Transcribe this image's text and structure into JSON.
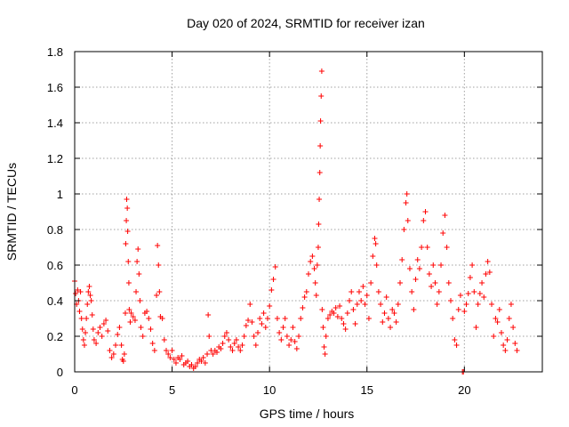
{
  "chart_data": {
    "type": "scatter",
    "title": "Day 020 of 2024, SRMTID for receiver izan",
    "xlabel": "GPS time / hours",
    "ylabel": "SRMTID / TECUs",
    "xlim": [
      0,
      24
    ],
    "ylim": [
      0,
      1.8
    ],
    "xticks": [
      0,
      5,
      10,
      15,
      20
    ],
    "xtick_labels": [
      "0",
      "5",
      "10",
      "15",
      "20"
    ],
    "yticks": [
      0,
      0.2,
      0.4,
      0.6,
      0.8,
      1.0,
      1.2,
      1.4,
      1.6,
      1.8
    ],
    "ytick_labels": [
      "0",
      "0.2",
      "0.4",
      "0.6",
      "0.8",
      "1",
      "1.2",
      "1.4",
      "1.6",
      "1.8"
    ],
    "grid": true,
    "marker": "+",
    "color": "#ff0000",
    "series": [
      {
        "name": "SRMTID",
        "points": [
          [
            0.0,
            0.51
          ],
          [
            0.05,
            0.44
          ],
          [
            0.1,
            0.38
          ],
          [
            0.15,
            0.46
          ],
          [
            0.2,
            0.4
          ],
          [
            0.25,
            0.34
          ],
          [
            0.3,
            0.45
          ],
          [
            0.35,
            0.3
          ],
          [
            0.4,
            0.24
          ],
          [
            0.45,
            0.18
          ],
          [
            0.5,
            0.15
          ],
          [
            0.55,
            0.22
          ],
          [
            0.6,
            0.3
          ],
          [
            0.65,
            0.38
          ],
          [
            0.7,
            0.45
          ],
          [
            0.75,
            0.48
          ],
          [
            0.8,
            0.43
          ],
          [
            0.85,
            0.4
          ],
          [
            0.9,
            0.32
          ],
          [
            0.95,
            0.24
          ],
          [
            1.0,
            0.18
          ],
          [
            1.1,
            0.16
          ],
          [
            1.2,
            0.22
          ],
          [
            1.3,
            0.25
          ],
          [
            1.4,
            0.2
          ],
          [
            1.5,
            0.27
          ],
          [
            1.6,
            0.29
          ],
          [
            1.7,
            0.23
          ],
          [
            1.8,
            0.12
          ],
          [
            1.9,
            0.08
          ],
          [
            2.0,
            0.1
          ],
          [
            2.1,
            0.15
          ],
          [
            2.2,
            0.21
          ],
          [
            2.3,
            0.25
          ],
          [
            2.4,
            0.15
          ],
          [
            2.45,
            0.07
          ],
          [
            2.5,
            0.06
          ],
          [
            2.55,
            0.1
          ],
          [
            2.6,
            0.33
          ],
          [
            2.62,
            0.72
          ],
          [
            2.65,
            0.85
          ],
          [
            2.67,
            0.97
          ],
          [
            2.7,
            0.92
          ],
          [
            2.72,
            0.79
          ],
          [
            2.75,
            0.62
          ],
          [
            2.78,
            0.5
          ],
          [
            2.8,
            0.35
          ],
          [
            2.85,
            0.28
          ],
          [
            2.9,
            0.33
          ],
          [
            3.0,
            0.31
          ],
          [
            3.1,
            0.29
          ],
          [
            3.15,
            0.45
          ],
          [
            3.2,
            0.62
          ],
          [
            3.25,
            0.69
          ],
          [
            3.3,
            0.55
          ],
          [
            3.35,
            0.4
          ],
          [
            3.4,
            0.25
          ],
          [
            3.5,
            0.2
          ],
          [
            3.6,
            0.33
          ],
          [
            3.7,
            0.34
          ],
          [
            3.8,
            0.3
          ],
          [
            3.9,
            0.24
          ],
          [
            4.0,
            0.16
          ],
          [
            4.1,
            0.12
          ],
          [
            4.2,
            0.43
          ],
          [
            4.25,
            0.71
          ],
          [
            4.3,
            0.6
          ],
          [
            4.35,
            0.45
          ],
          [
            4.4,
            0.31
          ],
          [
            4.5,
            0.3
          ],
          [
            4.6,
            0.18
          ],
          [
            4.7,
            0.12
          ],
          [
            4.8,
            0.1
          ],
          [
            4.9,
            0.08
          ],
          [
            5.0,
            0.12
          ],
          [
            5.1,
            0.07
          ],
          [
            5.2,
            0.05
          ],
          [
            5.3,
            0.08
          ],
          [
            5.4,
            0.07
          ],
          [
            5.5,
            0.09
          ],
          [
            5.6,
            0.04
          ],
          [
            5.7,
            0.05
          ],
          [
            5.8,
            0.06
          ],
          [
            5.9,
            0.03
          ],
          [
            6.0,
            0.04
          ],
          [
            6.1,
            0.02
          ],
          [
            6.2,
            0.03
          ],
          [
            6.3,
            0.05
          ],
          [
            6.4,
            0.07
          ],
          [
            6.5,
            0.06
          ],
          [
            6.6,
            0.08
          ],
          [
            6.7,
            0.05
          ],
          [
            6.8,
            0.1
          ],
          [
            6.85,
            0.32
          ],
          [
            6.9,
            0.2
          ],
          [
            7.0,
            0.12
          ],
          [
            7.1,
            0.1
          ],
          [
            7.2,
            0.12
          ],
          [
            7.3,
            0.11
          ],
          [
            7.4,
            0.14
          ],
          [
            7.5,
            0.13
          ],
          [
            7.6,
            0.16
          ],
          [
            7.7,
            0.2
          ],
          [
            7.8,
            0.22
          ],
          [
            7.9,
            0.18
          ],
          [
            8.0,
            0.14
          ],
          [
            8.1,
            0.12
          ],
          [
            8.2,
            0.16
          ],
          [
            8.3,
            0.18
          ],
          [
            8.4,
            0.14
          ],
          [
            8.5,
            0.12
          ],
          [
            8.6,
            0.15
          ],
          [
            8.7,
            0.2
          ],
          [
            8.8,
            0.26
          ],
          [
            8.9,
            0.29
          ],
          [
            9.0,
            0.38
          ],
          [
            9.1,
            0.28
          ],
          [
            9.2,
            0.2
          ],
          [
            9.3,
            0.15
          ],
          [
            9.4,
            0.22
          ],
          [
            9.5,
            0.3
          ],
          [
            9.6,
            0.27
          ],
          [
            9.7,
            0.33
          ],
          [
            9.8,
            0.25
          ],
          [
            9.9,
            0.3
          ],
          [
            10.0,
            0.37
          ],
          [
            10.1,
            0.46
          ],
          [
            10.2,
            0.52
          ],
          [
            10.3,
            0.59
          ],
          [
            10.4,
            0.3
          ],
          [
            10.5,
            0.22
          ],
          [
            10.6,
            0.18
          ],
          [
            10.7,
            0.25
          ],
          [
            10.8,
            0.3
          ],
          [
            10.9,
            0.2
          ],
          [
            11.0,
            0.15
          ],
          [
            11.1,
            0.18
          ],
          [
            11.2,
            0.25
          ],
          [
            11.3,
            0.17
          ],
          [
            11.4,
            0.13
          ],
          [
            11.5,
            0.2
          ],
          [
            11.6,
            0.3
          ],
          [
            11.7,
            0.36
          ],
          [
            11.8,
            0.42
          ],
          [
            11.9,
            0.45
          ],
          [
            12.0,
            0.55
          ],
          [
            12.1,
            0.62
          ],
          [
            12.2,
            0.65
          ],
          [
            12.3,
            0.58
          ],
          [
            12.35,
            0.5
          ],
          [
            12.4,
            0.43
          ],
          [
            12.45,
            0.6
          ],
          [
            12.5,
            0.7
          ],
          [
            12.52,
            0.83
          ],
          [
            12.55,
            0.97
          ],
          [
            12.58,
            1.12
          ],
          [
            12.6,
            1.27
          ],
          [
            12.62,
            1.41
          ],
          [
            12.65,
            1.55
          ],
          [
            12.68,
            1.69
          ],
          [
            12.7,
            0.35
          ],
          [
            12.75,
            0.25
          ],
          [
            12.8,
            0.14
          ],
          [
            12.85,
            0.1
          ],
          [
            12.9,
            0.2
          ],
          [
            13.0,
            0.3
          ],
          [
            13.1,
            0.32
          ],
          [
            13.2,
            0.34
          ],
          [
            13.3,
            0.33
          ],
          [
            13.4,
            0.36
          ],
          [
            13.5,
            0.31
          ],
          [
            13.6,
            0.37
          ],
          [
            13.7,
            0.3
          ],
          [
            13.8,
            0.27
          ],
          [
            13.9,
            0.24
          ],
          [
            14.0,
            0.33
          ],
          [
            14.1,
            0.4
          ],
          [
            14.2,
            0.45
          ],
          [
            14.3,
            0.35
          ],
          [
            14.4,
            0.27
          ],
          [
            14.5,
            0.38
          ],
          [
            14.6,
            0.45
          ],
          [
            14.7,
            0.4
          ],
          [
            14.8,
            0.48
          ],
          [
            14.9,
            0.38
          ],
          [
            15.0,
            0.43
          ],
          [
            15.1,
            0.3
          ],
          [
            15.2,
            0.5
          ],
          [
            15.3,
            0.65
          ],
          [
            15.4,
            0.75
          ],
          [
            15.45,
            0.72
          ],
          [
            15.5,
            0.6
          ],
          [
            15.6,
            0.45
          ],
          [
            15.7,
            0.38
          ],
          [
            15.8,
            0.28
          ],
          [
            15.9,
            0.33
          ],
          [
            16.0,
            0.42
          ],
          [
            16.1,
            0.3
          ],
          [
            16.2,
            0.25
          ],
          [
            16.3,
            0.35
          ],
          [
            16.4,
            0.33
          ],
          [
            16.5,
            0.28
          ],
          [
            16.6,
            0.38
          ],
          [
            16.7,
            0.5
          ],
          [
            16.8,
            0.63
          ],
          [
            16.9,
            0.8
          ],
          [
            17.0,
            0.95
          ],
          [
            17.05,
            1.0
          ],
          [
            17.1,
            0.85
          ],
          [
            17.2,
            0.58
          ],
          [
            17.3,
            0.45
          ],
          [
            17.4,
            0.35
          ],
          [
            17.5,
            0.52
          ],
          [
            17.6,
            0.63
          ],
          [
            17.7,
            0.58
          ],
          [
            17.8,
            0.7
          ],
          [
            17.9,
            0.85
          ],
          [
            18.0,
            0.9
          ],
          [
            18.1,
            0.7
          ],
          [
            18.2,
            0.55
          ],
          [
            18.3,
            0.48
          ],
          [
            18.4,
            0.6
          ],
          [
            18.5,
            0.5
          ],
          [
            18.6,
            0.38
          ],
          [
            18.7,
            0.45
          ],
          [
            18.8,
            0.6
          ],
          [
            18.9,
            0.78
          ],
          [
            19.0,
            0.88
          ],
          [
            19.1,
            0.7
          ],
          [
            19.2,
            0.5
          ],
          [
            19.3,
            0.4
          ],
          [
            19.4,
            0.3
          ],
          [
            19.5,
            0.18
          ],
          [
            19.6,
            0.15
          ],
          [
            19.7,
            0.35
          ],
          [
            19.8,
            0.43
          ],
          [
            19.9,
            0.0
          ],
          [
            19.95,
            0.0
          ],
          [
            20.0,
            0.34
          ],
          [
            20.1,
            0.38
          ],
          [
            20.2,
            0.44
          ],
          [
            20.3,
            0.53
          ],
          [
            20.4,
            0.6
          ],
          [
            20.5,
            0.45
          ],
          [
            20.6,
            0.25
          ],
          [
            20.7,
            0.38
          ],
          [
            20.8,
            0.44
          ],
          [
            20.9,
            0.5
          ],
          [
            21.0,
            0.42
          ],
          [
            21.1,
            0.55
          ],
          [
            21.2,
            0.62
          ],
          [
            21.3,
            0.56
          ],
          [
            21.4,
            0.38
          ],
          [
            21.5,
            0.2
          ],
          [
            21.6,
            0.3
          ],
          [
            21.7,
            0.28
          ],
          [
            21.8,
            0.35
          ],
          [
            21.9,
            0.22
          ],
          [
            22.0,
            0.15
          ],
          [
            22.1,
            0.12
          ],
          [
            22.2,
            0.18
          ],
          [
            22.3,
            0.3
          ],
          [
            22.4,
            0.38
          ],
          [
            22.5,
            0.25
          ],
          [
            22.6,
            0.16
          ],
          [
            22.7,
            0.12
          ]
        ]
      }
    ]
  }
}
